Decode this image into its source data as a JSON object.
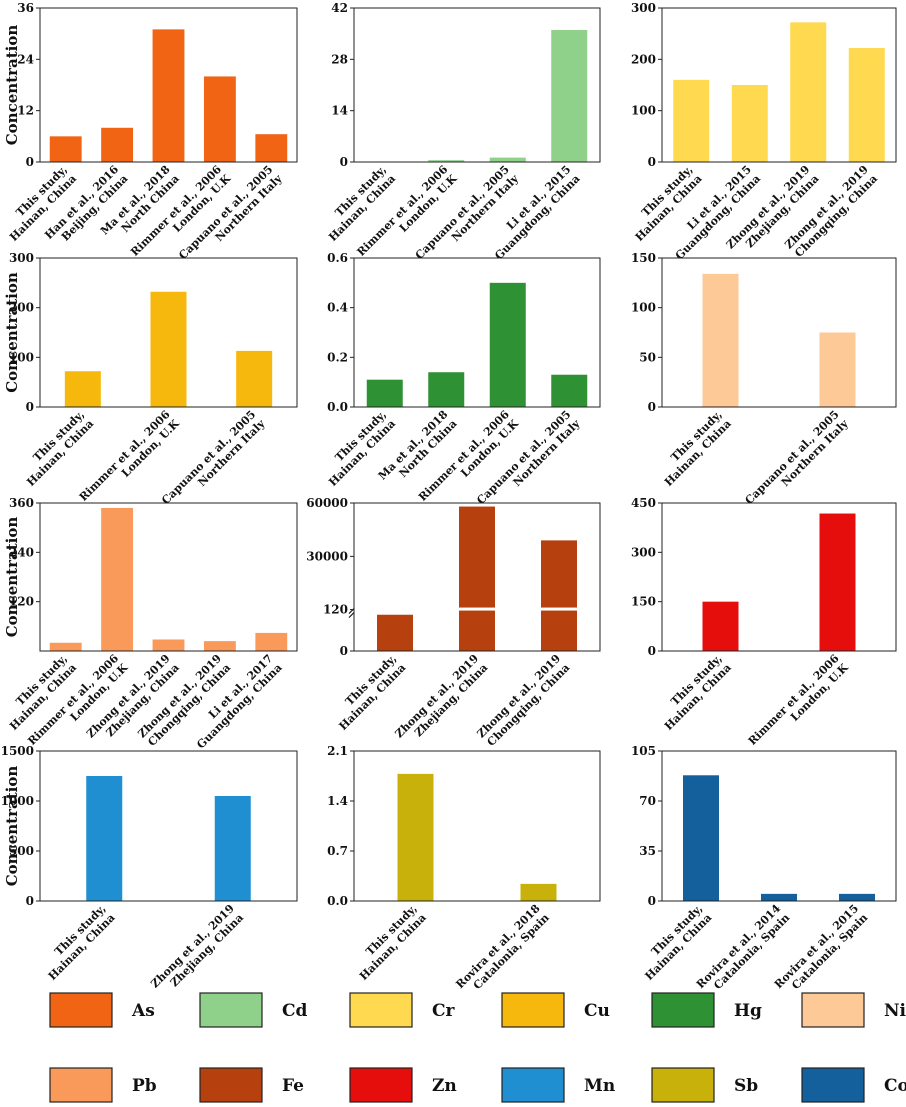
{
  "figure": {
    "ylabel": "Concentration"
  },
  "chart_data": [
    {
      "type": "bar",
      "element": "As",
      "color": "#f06414",
      "ylim": [
        0,
        36
      ],
      "yticks": [
        "0",
        "12",
        "24",
        "36"
      ],
      "show_ylabel": true,
      "categories": [
        [
          "This study,",
          "Hainan, China"
        ],
        [
          "Han et al., 2016",
          "Beijing, China"
        ],
        [
          "Ma et al., 2018",
          "North China"
        ],
        [
          "Rimmer et al., 2006",
          "London, U.K"
        ],
        [
          "Capuano et al., 2005",
          "Northern Italy"
        ]
      ],
      "values": [
        6,
        8,
        31,
        20,
        6.5
      ]
    },
    {
      "type": "bar",
      "element": "Cd",
      "color": "#8fd18b",
      "ylim": [
        0,
        42
      ],
      "yticks": [
        "0",
        "14",
        "28",
        "42"
      ],
      "show_ylabel": false,
      "categories": [
        [
          "This study,",
          "Hainan, China"
        ],
        [
          "Rimmer et al., 2006",
          "London, U.K"
        ],
        [
          "Capuano et al., 2005",
          "Northern Italy"
        ],
        [
          "Li et al., 2015",
          "Guangdong, China"
        ]
      ],
      "values": [
        0.1,
        0.5,
        1.2,
        36
      ]
    },
    {
      "type": "bar",
      "element": "Cr",
      "color": "#ffd94f",
      "ylim": [
        0,
        300
      ],
      "yticks": [
        "0",
        "100",
        "200",
        "300"
      ],
      "show_ylabel": false,
      "categories": [
        [
          "This study,",
          "Hainan, China"
        ],
        [
          "Li et al., 2015",
          "Guangdong, China"
        ],
        [
          "Zhong et al., 2019",
          "Zhejiang, China"
        ],
        [
          "Zhong et al., 2019",
          "Chongqing, China"
        ]
      ],
      "values": [
        160,
        150,
        272,
        222
      ]
    },
    {
      "type": "bar",
      "element": "Cu",
      "color": "#f7b80d",
      "ylim": [
        0,
        300
      ],
      "yticks": [
        "0",
        "100",
        "200",
        "300"
      ],
      "show_ylabel": true,
      "categories": [
        [
          "This study,",
          "Hainan, China"
        ],
        [
          "Rimmer et al., 2006",
          "London, U.K"
        ],
        [
          "Capuano et al., 2005",
          "Northern Italy"
        ]
      ],
      "values": [
        72,
        232,
        113
      ]
    },
    {
      "type": "bar",
      "element": "Hg",
      "color": "#2e9134",
      "ylim": [
        0,
        0.6
      ],
      "yticks": [
        "0.0",
        "0.2",
        "0.4",
        "0.6"
      ],
      "show_ylabel": false,
      "categories": [
        [
          "This study,",
          "Hainan, China"
        ],
        [
          "Ma et al., 2018",
          "North China"
        ],
        [
          "Rimmer et al., 2006",
          "London, U.K"
        ],
        [
          "Capuano et al., 2005",
          "Northern Italy"
        ]
      ],
      "values": [
        0.11,
        0.14,
        0.5,
        0.13
      ]
    },
    {
      "type": "bar",
      "element": "Ni",
      "color": "#fcc997",
      "ylim": [
        0,
        150
      ],
      "yticks": [
        "0",
        "50",
        "100",
        "150"
      ],
      "show_ylabel": false,
      "categories": [
        [
          "This study,",
          "Hainan, China"
        ],
        [
          "Capuano et al., 2005",
          "Northern Italy"
        ]
      ],
      "values": [
        134,
        75
      ]
    },
    {
      "type": "bar",
      "element": "Pb",
      "color": "#fa9a5a",
      "ylim": [
        0,
        360
      ],
      "yticks": [
        "120",
        "240",
        "360"
      ],
      "show_ylabel": true,
      "categories": [
        [
          "This study,",
          "Hainan, China"
        ],
        [
          "Rimmer et al., 2006",
          "London, U.K"
        ],
        [
          "Zhong et al., 2019",
          "Zhejiang, China"
        ],
        [
          "Zhong et al., 2019",
          "Chongqing, China"
        ],
        [
          "Li et al., 2017",
          "Guangdong, China"
        ]
      ],
      "values": [
        20,
        348,
        28,
        24,
        44
      ]
    },
    {
      "type": "bar",
      "element": "Fe",
      "color": "#b7410e",
      "axis_break": true,
      "break_at": 120,
      "upper_range": [
        120,
        60000
      ],
      "ylim": [
        0,
        60000
      ],
      "yticks": [
        "0",
        "120",
        "30000",
        "60000"
      ],
      "show_ylabel": false,
      "categories": [
        [
          "This study,",
          "Hainan, China"
        ],
        [
          "Zhong et al., 2019",
          "Zhejiang, China"
        ],
        [
          "Zhong et al., 2019",
          "Chongqing, China"
        ]
      ],
      "values": [
        105,
        58000,
        39000
      ]
    },
    {
      "type": "bar",
      "element": "Zn",
      "color": "#e60d0d",
      "ylim": [
        0,
        450
      ],
      "yticks": [
        "0",
        "150",
        "300",
        "450"
      ],
      "show_ylabel": false,
      "categories": [
        [
          "This study,",
          "Hainan, China"
        ],
        [
          "Rimmer et al., 2006",
          "London, U.K"
        ]
      ],
      "values": [
        150,
        418
      ]
    },
    {
      "type": "bar",
      "element": "Mn",
      "color": "#1f8fd1",
      "ylim": [
        0,
        1500
      ],
      "yticks": [
        "0",
        "500",
        "1000",
        "1500"
      ],
      "show_ylabel": true,
      "categories": [
        [
          "This study,",
          "Hainan, China"
        ],
        [
          "Zhong et al., 2019",
          "Zhejiang, China"
        ]
      ],
      "values": [
        1250,
        1050
      ]
    },
    {
      "type": "bar",
      "element": "Sb",
      "color": "#c7b10a",
      "ylim": [
        0,
        2.1
      ],
      "yticks": [
        "0.0",
        "0.7",
        "1.4",
        "2.1"
      ],
      "show_ylabel": false,
      "categories": [
        [
          "This study,",
          "Hainan, China"
        ],
        [
          "Rovira et al., 2018",
          "Catalonia, Spain"
        ]
      ],
      "values": [
        1.78,
        0.24
      ]
    },
    {
      "type": "bar",
      "element": "Co",
      "color": "#13609c",
      "ylim": [
        0,
        105
      ],
      "yticks": [
        "0",
        "35",
        "70",
        "105"
      ],
      "show_ylabel": false,
      "categories": [
        [
          "This study,",
          "Hainan, China"
        ],
        [
          "Rovira et al., 2014",
          "Catalonia, Spain"
        ],
        [
          "Rovira et al., 2015",
          "Catalonia, Spain"
        ]
      ],
      "values": [
        88,
        5,
        5
      ]
    }
  ],
  "legend": [
    {
      "label": "As",
      "color": "#f06414"
    },
    {
      "label": "Cd",
      "color": "#8fd18b"
    },
    {
      "label": "Cr",
      "color": "#ffd94f"
    },
    {
      "label": "Cu",
      "color": "#f7b80d"
    },
    {
      "label": "Hg",
      "color": "#2e9134"
    },
    {
      "label": "Ni",
      "color": "#fcc997"
    },
    {
      "label": "Pb",
      "color": "#fa9a5a"
    },
    {
      "label": "Fe",
      "color": "#b7410e"
    },
    {
      "label": "Zn",
      "color": "#e60d0d"
    },
    {
      "label": "Mn",
      "color": "#1f8fd1"
    },
    {
      "label": "Sb",
      "color": "#c7b10a"
    },
    {
      "label": "Co",
      "color": "#13609c"
    }
  ]
}
